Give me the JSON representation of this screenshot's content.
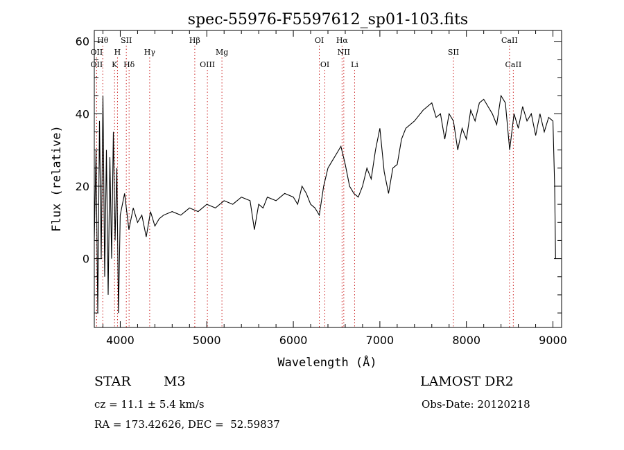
{
  "chart_data": {
    "type": "line",
    "title": "spec-55976-F5597612_sp01-103.fits",
    "xlabel": "Wavelength (Å)",
    "ylabel": "Flux (relative)",
    "xlim": [
      3700,
      9100
    ],
    "ylim": [
      -19,
      63
    ],
    "xticks": [
      4000,
      5000,
      6000,
      7000,
      8000,
      9000
    ],
    "yticks": [
      0,
      20,
      40,
      60
    ],
    "grid": false,
    "series": [
      {
        "x": [
          3700,
          3720,
          3740,
          3760,
          3780,
          3800,
          3820,
          3840,
          3860,
          3880,
          3900,
          3920,
          3940,
          3960,
          3980,
          4000,
          4050,
          4100,
          4150,
          4200,
          4250,
          4300,
          4350,
          4400,
          4450,
          4500,
          4600,
          4700,
          4800,
          4900,
          5000,
          5100,
          5200,
          5300,
          5400,
          5500,
          5550,
          5600,
          5650,
          5700,
          5800,
          5900,
          6000,
          6050,
          6100,
          6150,
          6200,
          6250,
          6300,
          6350,
          6400,
          6450,
          6500,
          6550,
          6600,
          6650,
          6700,
          6750,
          6800,
          6850,
          6900,
          6950,
          7000,
          7050,
          7100,
          7150,
          7200,
          7250,
          7300,
          7400,
          7500,
          7600,
          7650,
          7700,
          7750,
          7800,
          7850,
          7900,
          7950,
          8000,
          8050,
          8100,
          8150,
          8200,
          8250,
          8300,
          8350,
          8400,
          8450,
          8500,
          8550,
          8600,
          8650,
          8700,
          8750,
          8800,
          8850,
          8900,
          8950,
          9000,
          9020,
          9030
        ],
        "y": [
          5,
          30,
          -15,
          38,
          0,
          45,
          -5,
          30,
          -10,
          28,
          0,
          35,
          5,
          25,
          -15,
          12,
          18,
          8,
          14,
          10,
          12,
          6,
          13,
          9,
          11,
          12,
          13,
          12,
          14,
          13,
          15,
          14,
          16,
          15,
          17,
          16,
          8,
          15,
          14,
          17,
          16,
          18,
          17,
          15,
          20,
          18,
          15,
          14,
          12,
          20,
          25,
          27,
          29,
          31,
          26,
          20,
          18,
          17,
          20,
          25,
          22,
          30,
          36,
          24,
          18,
          25,
          26,
          33,
          36,
          38,
          41,
          43,
          39,
          40,
          33,
          40,
          38,
          30,
          36,
          33,
          41,
          38,
          43,
          44,
          42,
          40,
          37,
          45,
          43,
          30,
          40,
          36,
          42,
          38,
          40,
          34,
          40,
          35,
          39,
          38,
          20,
          0
        ]
      }
    ],
    "line_markers": [
      {
        "label": "Hθ",
        "x": 3798,
        "row": 1,
        "color": "#cc2222"
      },
      {
        "label": "OII",
        "x": 3727,
        "row": 2,
        "color": "#cc2222"
      },
      {
        "label": "OII",
        "x": 3727,
        "row": 3,
        "color": "#cc2222"
      },
      {
        "label": "SII",
        "x": 4070,
        "row": 1,
        "color": "#cc2222"
      },
      {
        "label": "H",
        "x": 3968,
        "row": 2,
        "color": "#cc2222"
      },
      {
        "label": "K",
        "x": 3934,
        "row": 3,
        "color": "#cc2222"
      },
      {
        "label": "Hδ",
        "x": 4102,
        "row": 3,
        "color": "#cc2222"
      },
      {
        "label": "Hγ",
        "x": 4340,
        "row": 2,
        "color": "#cc2222"
      },
      {
        "label": "Hβ",
        "x": 4861,
        "row": 1,
        "color": "#cc2222"
      },
      {
        "label": "OIII",
        "x": 5007,
        "row": 3,
        "color": "#cc2222"
      },
      {
        "label": "Mg",
        "x": 5175,
        "row": 2,
        "color": "#cc2222"
      },
      {
        "label": "OI",
        "x": 6300,
        "row": 1,
        "color": "#cc2222"
      },
      {
        "label": "OI",
        "x": 6364,
        "row": 3,
        "color": "#cc2222"
      },
      {
        "label": "Hα",
        "x": 6563,
        "row": 1,
        "color": "#cc2222"
      },
      {
        "label": "NII",
        "x": 6583,
        "row": 2,
        "color": "#cc2222"
      },
      {
        "label": "Li",
        "x": 6708,
        "row": 3,
        "color": "#cc2222"
      },
      {
        "label": "SII",
        "x": 7850,
        "row": 2,
        "color": "#cc2222"
      },
      {
        "label": "CaII",
        "x": 8498,
        "row": 1,
        "color": "#cc2222"
      },
      {
        "label": "CaII",
        "x": 8542,
        "row": 3,
        "color": "#cc2222"
      }
    ]
  },
  "info": {
    "class": "STAR",
    "subclass": "M3",
    "survey": "LAMOST DR2",
    "cz": "cz = 11.1 ± 5.4 km/s",
    "obs_date": "Obs-Date: 20120218",
    "radec": "RA = 173.42626, DEC =  52.59837"
  },
  "colors": {
    "line": "#000000",
    "marker": "#cc2222"
  }
}
